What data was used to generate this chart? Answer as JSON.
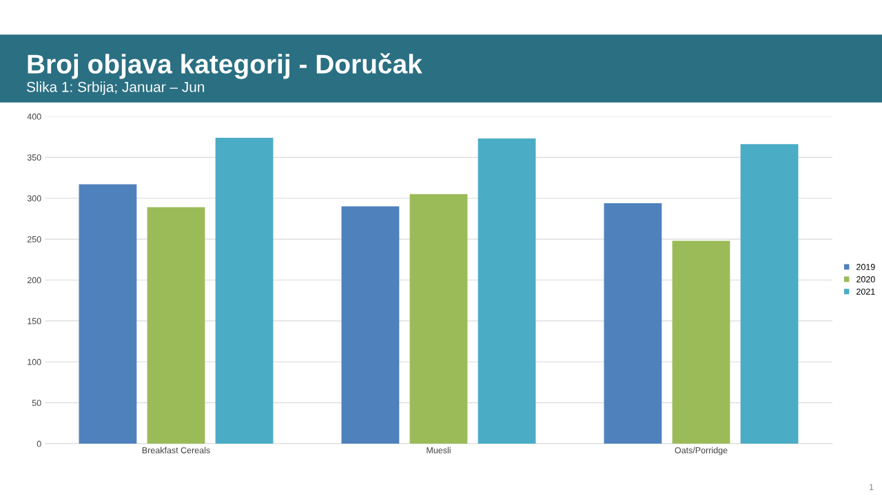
{
  "chart_data": {
    "type": "bar",
    "title": "Broj objava kategorij - Doručak",
    "subtitle": "Slika 1: Srbija; Januar – Jun",
    "categories": [
      "Breakfast Cereals",
      "Muesli",
      "Oats/Porridge"
    ],
    "series": [
      {
        "name": "2019",
        "color": "#4f81bd",
        "values": [
          317,
          290,
          294
        ]
      },
      {
        "name": "2020",
        "color": "#9bbb59",
        "values": [
          289,
          305,
          248
        ]
      },
      {
        "name": "2021",
        "color": "#4bacc6",
        "values": [
          374,
          373,
          366
        ]
      }
    ],
    "ylim": [
      0,
      400
    ],
    "yticks": [
      0,
      50,
      100,
      150,
      200,
      250,
      300,
      350,
      400
    ],
    "grid": "y",
    "legend": "right",
    "annotations": [
      "1"
    ]
  }
}
